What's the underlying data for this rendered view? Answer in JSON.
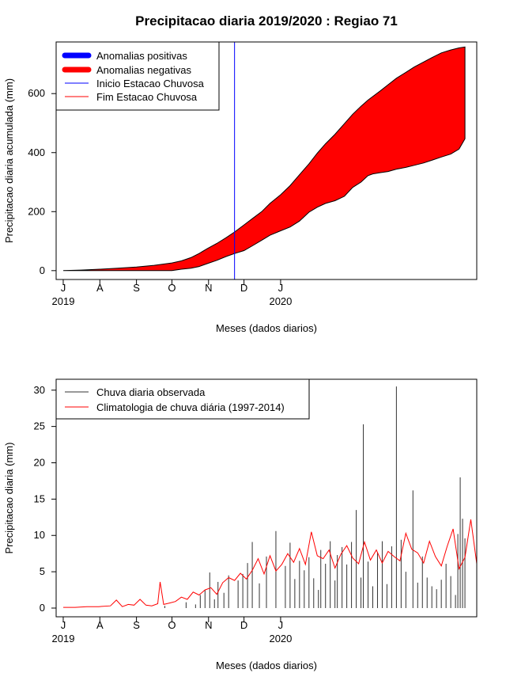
{
  "title": "Precipitacao diaria 2019/2020 : Regiao 71",
  "chart_data": [
    {
      "type": "area",
      "ylabel": "Precipitacao diaria acumulada (mm)",
      "xlabel": "Meses (dados diarios)",
      "x_ticks": [
        "J",
        "A",
        "S",
        "O",
        "N",
        "D",
        "J"
      ],
      "year_labels": [
        "2019",
        "2020"
      ],
      "y_ticks": [
        0,
        200,
        400,
        600
      ],
      "ylim": [
        -30,
        775
      ],
      "xlim_days": [
        -6,
        350
      ],
      "legend": [
        {
          "label": "Anomalias positivas",
          "color": "#0000ff",
          "style": "thick"
        },
        {
          "label": "Anomalias negativas",
          "color": "#ff0000",
          "style": "thick"
        },
        {
          "label": "Inicio Estacao Chuvosa",
          "color": "#0000ff",
          "style": "thin"
        },
        {
          "label": "Fim Estacao Chuvosa",
          "color": "#ff0000",
          "style": "thin"
        }
      ],
      "legend_position": "top-left",
      "onset_day": 145,
      "climatology_cumulative": {
        "day": [
          0,
          15,
          31,
          46,
          62,
          77,
          92,
          100,
          108,
          115,
          122,
          130,
          138,
          145,
          153,
          160,
          168,
          175,
          184,
          192,
          200,
          208,
          215,
          222,
          230,
          238,
          245,
          252,
          258,
          262,
          268,
          275,
          282,
          290,
          297,
          305,
          312,
          320,
          328,
          335,
          340
        ],
        "value": [
          0,
          2,
          5,
          8,
          12,
          18,
          26,
          33,
          44,
          58,
          75,
          92,
          112,
          131,
          155,
          176,
          200,
          228,
          257,
          288,
          325,
          362,
          398,
          430,
          462,
          498,
          530,
          557,
          578,
          590,
          608,
          630,
          652,
          672,
          690,
          707,
          722,
          738,
          748,
          755,
          758
        ]
      },
      "observed_cumulative": {
        "day": [
          0,
          15,
          31,
          46,
          62,
          77,
          92,
          100,
          108,
          115,
          122,
          130,
          138,
          145,
          153,
          160,
          168,
          175,
          184,
          192,
          200,
          208,
          215,
          222,
          230,
          238,
          245,
          252,
          258,
          262,
          268,
          275,
          282,
          290,
          297,
          305,
          312,
          320,
          328,
          335,
          340
        ],
        "value": [
          0,
          0,
          0,
          0,
          0,
          0,
          0,
          5,
          8,
          14,
          24,
          35,
          48,
          58,
          68,
          84,
          103,
          120,
          135,
          148,
          168,
          198,
          215,
          228,
          237,
          252,
          282,
          300,
          322,
          328,
          332,
          336,
          344,
          350,
          357,
          365,
          374,
          385,
          395,
          412,
          447
        ]
      }
    },
    {
      "type": "bar",
      "ylabel": "Precipitacao diaria (mm)",
      "xlabel": "Meses (dados diarios)",
      "x_ticks": [
        "J",
        "A",
        "S",
        "O",
        "N",
        "D",
        "J"
      ],
      "year_labels": [
        "2019",
        "2020"
      ],
      "y_ticks": [
        0,
        5,
        10,
        15,
        20,
        25,
        30
      ],
      "ylim": [
        -1.2,
        31.5
      ],
      "xlim_days": [
        -6,
        350
      ],
      "legend": [
        {
          "label": "Chuva diaria observada",
          "color": "#333333"
        },
        {
          "label": "Climatologia de chuva diária (1997-2014)",
          "color": "#ff0000"
        }
      ],
      "legend_position": "top-left",
      "observed_daily": {
        "day": [
          86,
          104,
          112,
          116,
          120,
          124,
          128,
          131,
          136,
          140,
          148,
          152,
          156,
          160,
          166,
          172,
          180,
          188,
          192,
          196,
          200,
          204,
          208,
          212,
          216,
          218,
          222,
          226,
          230,
          232,
          236,
          240,
          244,
          248,
          252,
          254,
          258,
          262,
          266,
          270,
          274,
          278,
          282,
          286,
          290,
          296,
          300,
          304,
          308,
          312,
          316,
          320,
          324,
          328,
          332,
          334,
          336,
          338,
          340
        ],
        "value": [
          0.3,
          0.8,
          0.5,
          1.8,
          2.5,
          4.9,
          1.2,
          3.6,
          2.1,
          4.5,
          3.8,
          4.7,
          6.2,
          9.1,
          3.4,
          7.1,
          10.6,
          5.8,
          9.0,
          4.0,
          6.5,
          5.2,
          7.0,
          4.1,
          2.5,
          8.0,
          6.1,
          9.2,
          3.8,
          7.3,
          8.4,
          6.0,
          9.1,
          13.5,
          4.2,
          25.3,
          6.4,
          3.0,
          7.7,
          9.2,
          3.3,
          8.5,
          30.5,
          9.4,
          5.0,
          16.2,
          3.5,
          7.1,
          4.2,
          3.0,
          2.6,
          3.9,
          6.1,
          4.4,
          1.8,
          10.2,
          18.0,
          12.3,
          9.6
        ]
      },
      "climatology_daily": {
        "day": [
          0,
          10,
          20,
          30,
          40,
          45,
          50,
          55,
          60,
          65,
          70,
          75,
          80,
          82,
          85,
          90,
          95,
          100,
          105,
          110,
          115,
          120,
          125,
          130,
          135,
          140,
          145,
          150,
          155,
          160,
          165,
          170,
          175,
          180,
          185,
          190,
          195,
          200,
          205,
          210,
          215,
          220,
          225,
          230,
          235,
          240,
          245,
          250,
          255,
          260,
          265,
          270,
          275,
          280,
          285,
          290,
          295,
          300,
          305,
          310,
          315,
          320,
          325,
          330,
          335,
          340,
          345,
          350
        ],
        "value": [
          0.1,
          0.1,
          0.2,
          0.2,
          0.3,
          1.1,
          0.2,
          0.5,
          0.4,
          1.2,
          0.4,
          0.3,
          0.6,
          3.6,
          0.5,
          0.7,
          0.9,
          1.5,
          1.2,
          2.2,
          1.8,
          2.5,
          2.8,
          1.9,
          3.5,
          4.2,
          3.8,
          4.8,
          4.0,
          5.2,
          6.8,
          4.7,
          7.2,
          5.1,
          6.0,
          7.5,
          6.3,
          8.2,
          6.0,
          10.5,
          7.2,
          6.8,
          8.0,
          5.5,
          7.4,
          8.6,
          6.9,
          6.1,
          9.1,
          6.6,
          8.0,
          6.2,
          7.8,
          7.1,
          6.5,
          10.3,
          8.1,
          7.6,
          6.2,
          9.2,
          7.1,
          5.8,
          8.5,
          10.9,
          5.4,
          7.0,
          12.2,
          6.1
        ]
      }
    }
  ]
}
